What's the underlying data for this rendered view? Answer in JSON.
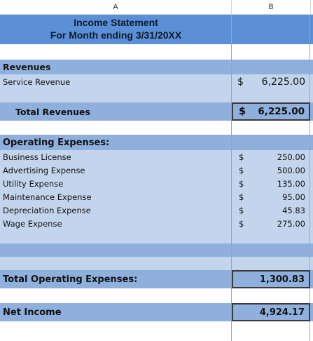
{
  "column_headers": [
    "A",
    "B"
  ],
  "title": {
    "line1": "Income Statement",
    "line2": "For Month ending 3/31/20XX"
  },
  "revenues": {
    "heading": "Revenues",
    "items": [
      {
        "label": "Service Revenue",
        "dollar": "$",
        "amount": "6,225.00"
      }
    ],
    "total": {
      "label": "Total Revenues",
      "dollar": "$",
      "amount": "6,225.00"
    }
  },
  "operating_expenses": {
    "heading": "Operating Expenses:",
    "items": [
      {
        "label": "Business License",
        "dollar": "$",
        "amount": "250.00"
      },
      {
        "label": "Advertising Expense",
        "dollar": "$",
        "amount": "500.00"
      },
      {
        "label": "Utility Expense",
        "dollar": "$",
        "amount": "135.00"
      },
      {
        "label": "Maintenance Expense",
        "dollar": "$",
        "amount": "95.00"
      },
      {
        "label": "Depreciation Expense",
        "dollar": "$",
        "amount": "45.83"
      },
      {
        "label": "Wage Expense",
        "dollar": "$",
        "amount": "275.00"
      }
    ],
    "total": {
      "label": "Total Operating Expenses:",
      "amount": "1,300.83"
    }
  },
  "net_income": {
    "label": "Net Income",
    "amount": "4,924.17"
  },
  "colors": {
    "title_band": "#5b90d6",
    "band_dark": "#8fb0dc",
    "band_light": "#c3d5ec"
  }
}
